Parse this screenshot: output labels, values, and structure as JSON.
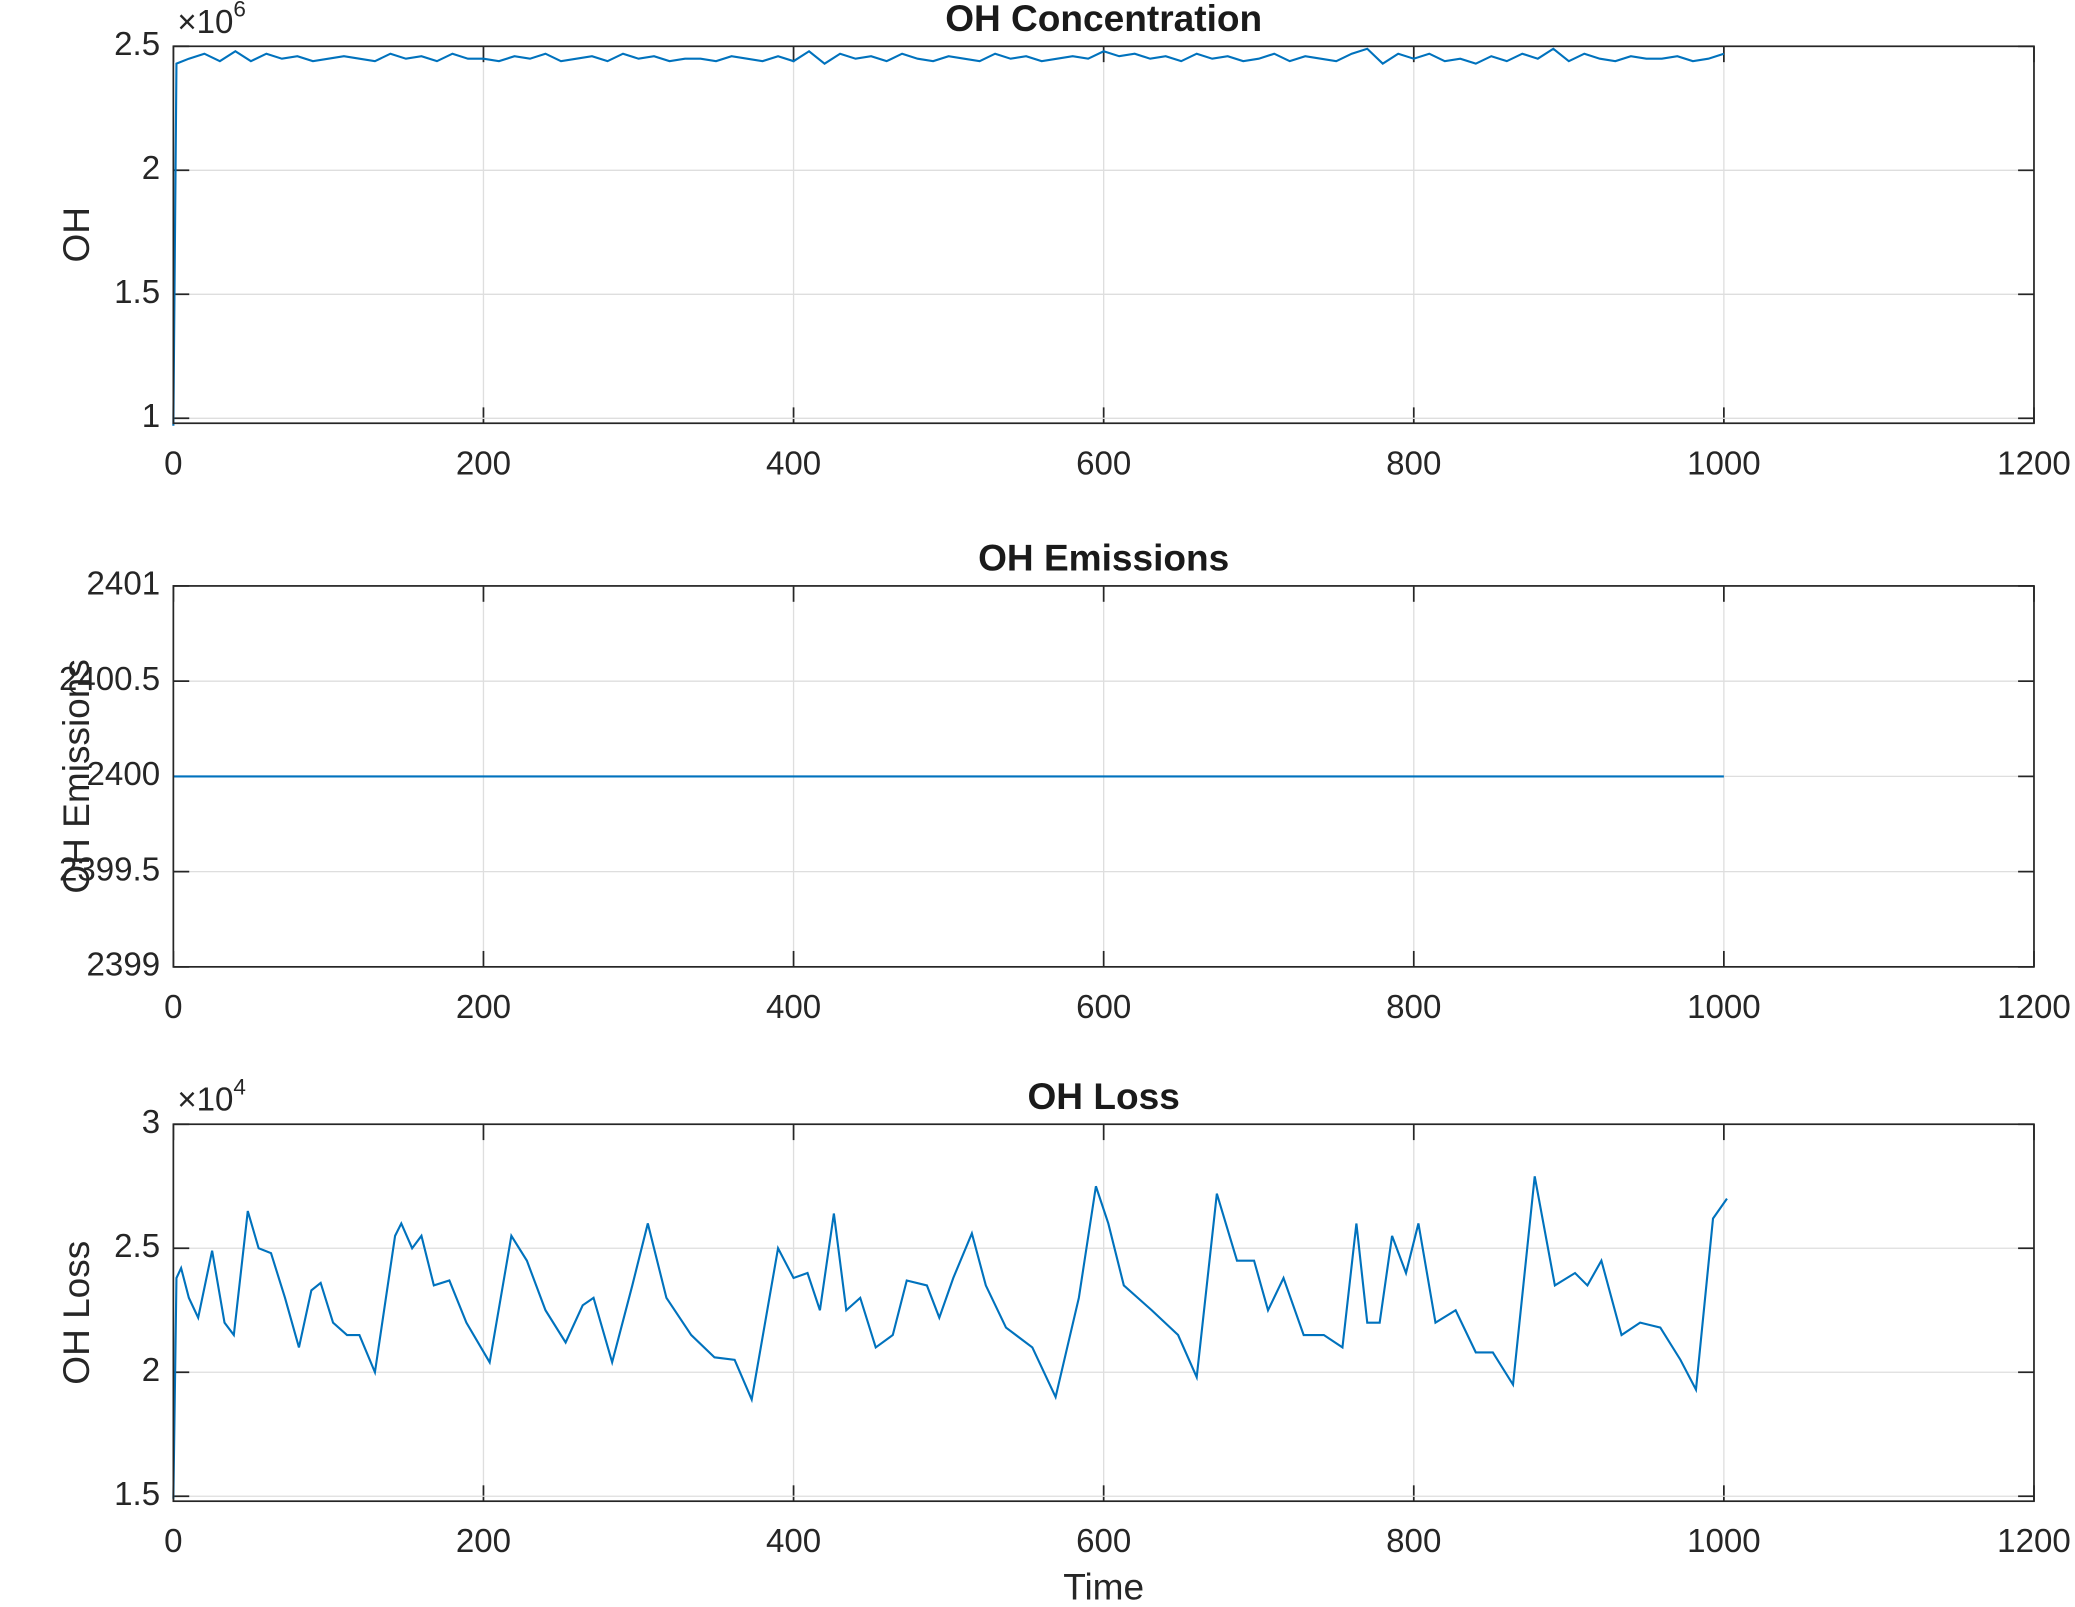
{
  "chart_data": [
    {
      "type": "line",
      "title": "OH Concentration",
      "ylabel": "OH",
      "y_multiplier": {
        "base": "×10",
        "exponent": "6"
      },
      "color": "#0072bd",
      "grid": true,
      "xlim": [
        0,
        1200
      ],
      "xticks": [
        0,
        200,
        400,
        600,
        800,
        1000,
        1200
      ],
      "ylim": [
        0.98,
        2.5
      ],
      "yticks": [
        1,
        1.5,
        2,
        2.5
      ],
      "x": [
        0,
        2,
        10,
        20,
        30,
        40,
        50,
        60,
        70,
        80,
        90,
        100,
        110,
        120,
        130,
        140,
        150,
        160,
        170,
        180,
        190,
        200,
        210,
        220,
        230,
        240,
        250,
        260,
        270,
        280,
        290,
        300,
        310,
        320,
        330,
        340,
        350,
        360,
        370,
        380,
        390,
        400,
        410,
        420,
        430,
        440,
        450,
        460,
        470,
        480,
        490,
        500,
        510,
        520,
        530,
        540,
        550,
        560,
        570,
        580,
        590,
        600,
        610,
        620,
        630,
        640,
        650,
        660,
        670,
        680,
        690,
        700,
        710,
        720,
        730,
        740,
        750,
        760,
        770,
        780,
        790,
        800,
        810,
        820,
        830,
        840,
        850,
        860,
        870,
        880,
        890,
        900,
        910,
        920,
        930,
        940,
        950,
        960,
        970,
        980,
        990,
        1000
      ],
      "values": [
        0.97,
        2.43,
        2.45,
        2.47,
        2.44,
        2.48,
        2.44,
        2.47,
        2.45,
        2.46,
        2.44,
        2.45,
        2.46,
        2.45,
        2.44,
        2.47,
        2.45,
        2.46,
        2.44,
        2.47,
        2.45,
        2.45,
        2.44,
        2.46,
        2.45,
        2.47,
        2.44,
        2.45,
        2.46,
        2.44,
        2.47,
        2.45,
        2.46,
        2.44,
        2.45,
        2.45,
        2.44,
        2.46,
        2.45,
        2.44,
        2.46,
        2.44,
        2.48,
        2.43,
        2.47,
        2.45,
        2.46,
        2.44,
        2.47,
        2.45,
        2.44,
        2.46,
        2.45,
        2.44,
        2.47,
        2.45,
        2.46,
        2.44,
        2.45,
        2.46,
        2.45,
        2.48,
        2.46,
        2.47,
        2.45,
        2.46,
        2.44,
        2.47,
        2.45,
        2.46,
        2.44,
        2.45,
        2.47,
        2.44,
        2.46,
        2.45,
        2.44,
        2.47,
        2.49,
        2.43,
        2.47,
        2.45,
        2.47,
        2.44,
        2.45,
        2.43,
        2.46,
        2.44,
        2.47,
        2.45,
        2.49,
        2.44,
        2.47,
        2.45,
        2.44,
        2.46,
        2.45,
        2.45,
        2.46,
        2.44,
        2.45,
        2.47
      ]
    },
    {
      "type": "line",
      "title": "OH Emissions",
      "ylabel": "OH Emissions",
      "color": "#0072bd",
      "grid": true,
      "xlim": [
        0,
        1200
      ],
      "xticks": [
        0,
        200,
        400,
        600,
        800,
        1000,
        1200
      ],
      "ylim": [
        2399,
        2401
      ],
      "yticks": [
        2399,
        2399.5,
        2400,
        2400.5,
        2401
      ],
      "x": [
        0,
        1000
      ],
      "values": [
        2400,
        2400
      ]
    },
    {
      "type": "line",
      "title": "OH Loss",
      "ylabel": "OH Loss",
      "xlabel": "Time",
      "y_multiplier": {
        "base": "×10",
        "exponent": "4"
      },
      "color": "#0072bd",
      "grid": true,
      "xlim": [
        0,
        1200
      ],
      "xticks": [
        0,
        200,
        400,
        600,
        800,
        1000,
        1200
      ],
      "ylim": [
        1.48,
        3
      ],
      "yticks": [
        1.5,
        2,
        2.5,
        3
      ],
      "x": [
        0,
        2,
        5,
        10,
        16,
        25,
        33,
        39,
        48,
        55,
        63,
        72,
        81,
        89,
        95,
        103,
        112,
        120,
        130,
        143,
        147,
        154,
        160,
        168,
        178,
        189,
        204,
        218,
        228,
        240,
        253,
        264,
        271,
        283,
        296,
        306,
        318,
        334,
        349,
        362,
        373,
        390,
        400,
        409,
        417,
        426,
        434,
        443,
        453,
        464,
        473,
        486,
        494,
        503,
        515,
        524,
        537,
        554,
        569,
        584,
        595,
        603,
        613,
        631,
        648,
        660,
        673,
        686,
        697,
        706,
        716,
        729,
        742,
        754,
        763,
        770,
        778,
        786,
        795,
        803,
        814,
        827,
        840,
        851,
        864,
        878,
        891,
        904,
        912,
        921,
        934,
        946,
        959,
        972,
        982,
        993,
        1002
      ],
      "values": [
        1.49,
        2.38,
        2.42,
        2.3,
        2.22,
        2.49,
        2.2,
        2.15,
        2.65,
        2.5,
        2.48,
        2.3,
        2.1,
        2.33,
        2.36,
        2.2,
        2.15,
        2.15,
        2.0,
        2.55,
        2.6,
        2.5,
        2.55,
        2.35,
        2.37,
        2.2,
        2.04,
        2.55,
        2.45,
        2.25,
        2.12,
        2.27,
        2.3,
        2.04,
        2.35,
        2.6,
        2.3,
        2.15,
        2.06,
        2.05,
        1.89,
        2.5,
        2.38,
        2.4,
        2.25,
        2.64,
        2.25,
        2.3,
        2.1,
        2.15,
        2.37,
        2.35,
        2.22,
        2.38,
        2.56,
        2.35,
        2.18,
        2.1,
        1.9,
        2.3,
        2.75,
        2.6,
        2.35,
        2.25,
        2.15,
        1.98,
        2.72,
        2.45,
        2.45,
        2.25,
        2.38,
        2.15,
        2.15,
        2.1,
        2.6,
        2.2,
        2.2,
        2.55,
        2.4,
        2.6,
        2.2,
        2.25,
        2.08,
        2.08,
        1.95,
        2.79,
        2.35,
        2.4,
        2.35,
        2.45,
        2.15,
        2.2,
        2.18,
        2.05,
        1.93,
        2.62,
        2.7
      ]
    }
  ]
}
